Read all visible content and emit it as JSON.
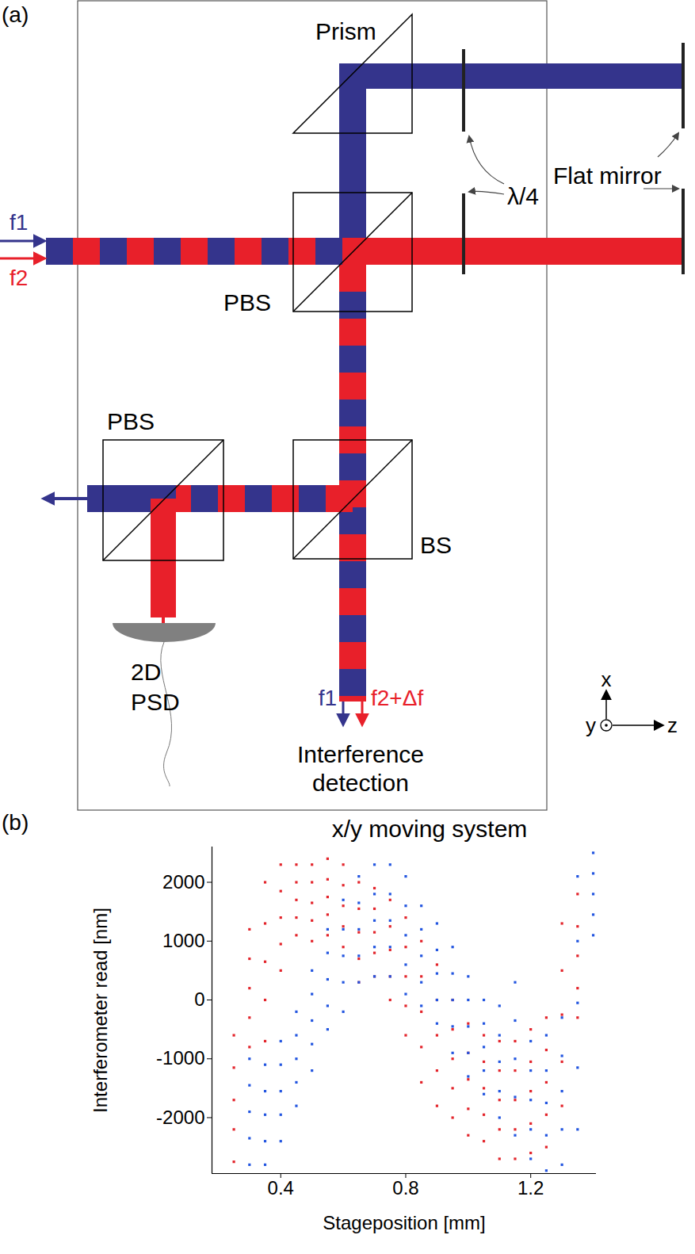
{
  "diagram": {
    "panel_label": "(a)",
    "components": {
      "prism": "Prism",
      "quarter_wave": "λ/4",
      "mirror": "Flat mirror",
      "pbs_top": "PBS",
      "pbs_bottom": "PBS",
      "bs": "BS",
      "psd": [
        "2D",
        "PSD"
      ]
    },
    "beams": {
      "input_f1": "f1",
      "input_f2": "f2",
      "output_f1": "f1",
      "output_f2": "f2+Δf"
    },
    "detection": [
      "Interference",
      "detection"
    ],
    "frame": "x/y moving system",
    "axes": {
      "x": "x",
      "y": "y",
      "z": "z"
    }
  },
  "chart_data": {
    "panel_label": "(b)",
    "type": "scatter",
    "x_label": "Stageposition [mm]",
    "y_label": "Interferometer read [nm]",
    "xlim": [
      0.18,
      1.41
    ],
    "ylim": [
      -2950,
      2600
    ],
    "xticks": [
      0.4,
      0.8,
      1.2
    ],
    "yticks": [
      -2000,
      -1000,
      0,
      1000,
      2000
    ],
    "marker": "square",
    "series": [
      {
        "color": "#e3242b",
        "x": [
          0.25,
          0.3,
          0.35,
          0.4,
          0.45,
          0.5,
          0.55,
          0.6,
          0.65,
          0.7,
          0.75,
          0.8,
          0.85,
          0.9,
          0.95,
          1.0,
          1.05,
          1.1,
          1.15,
          1.2,
          1.25,
          1.3,
          1.35
        ],
        "values": [
          [
            -2750,
            -2200,
            -1700,
            -1150,
            -600
          ],
          [
            -800,
            -300,
            200,
            700,
            1200
          ],
          [
            -700,
            0,
            650,
            1300,
            2000
          ],
          [
            500,
            950,
            1400,
            1850,
            2300
          ],
          [
            1100,
            1400,
            1700,
            2000,
            2300
          ],
          [
            1000,
            1350,
            1650,
            2000,
            2300
          ],
          [
            1100,
            1450,
            1750,
            2050,
            2400
          ],
          [
            900,
            1250,
            1600,
            1950,
            2300
          ],
          [
            300,
            700,
            1150,
            1550,
            2000
          ],
          [
            400,
            800,
            1150,
            1550,
            1900
          ],
          [
            0,
            400,
            850,
            1250,
            1700
          ],
          [
            -600,
            -100,
            400,
            900,
            1400
          ],
          [
            -1400,
            -800,
            -200,
            400,
            1000
          ],
          [
            -1800,
            -1200,
            -600,
            0,
            600
          ],
          [
            -2000,
            -1500,
            -1000,
            -500,
            0
          ],
          [
            -2300,
            -1850,
            -1350,
            -900,
            -400
          ],
          [
            -2400,
            -1950,
            -1500,
            -1050,
            -600
          ],
          [
            -2700,
            -2200,
            -1700,
            -1200,
            -700
          ],
          [
            -2700,
            -2200,
            -1700,
            -1200,
            -700
          ],
          [
            -2600,
            -2100,
            -1550,
            -1050,
            -500
          ],
          [
            -2500,
            -1950,
            -1400,
            -850,
            -300
          ],
          [
            -1800,
            -1050,
            -250,
            500,
            1300
          ],
          [
            -300,
            200,
            750,
            1250,
            1800
          ]
        ]
      },
      {
        "color": "#2255e0",
        "x": [
          0.3,
          0.35,
          0.4,
          0.45,
          0.5,
          0.55,
          0.6,
          0.65,
          0.7,
          0.75,
          0.8,
          0.85,
          0.9,
          0.95,
          1.0,
          1.05,
          1.1,
          1.15,
          1.2,
          1.25,
          1.3,
          1.35,
          1.4
        ],
        "values": [
          [
            -2800,
            -2350,
            -1900,
            -1450,
            -1000
          ],
          [
            -2800,
            -2400,
            -1950,
            -1550,
            -1100
          ],
          [
            -2400,
            -1950,
            -1550,
            -1100,
            -700
          ],
          [
            -1800,
            -1400,
            -1000,
            -600,
            -200
          ],
          [
            -1200,
            -750,
            -350,
            100,
            500
          ],
          [
            -500,
            -100,
            350,
            800,
            1200
          ],
          [
            -200,
            300,
            750,
            1200,
            1700
          ],
          [
            300,
            750,
            1200,
            1650,
            2100
          ],
          [
            400,
            900,
            1350,
            1800,
            2300
          ],
          [
            400,
            900,
            1350,
            1800,
            2300
          ],
          [
            100,
            600,
            1100,
            1600,
            2100
          ],
          [
            -100,
            300,
            750,
            1200,
            1600
          ],
          [
            -400,
            0,
            450,
            850,
            1300
          ],
          [
            -900,
            -450,
            0,
            450,
            900
          ],
          [
            -1300,
            -900,
            -450,
            0,
            400
          ],
          [
            -1600,
            -1200,
            -800,
            -400,
            0
          ],
          [
            -2000,
            -1550,
            -1050,
            -600,
            -100
          ],
          [
            -2300,
            -1650,
            -1000,
            -350,
            300
          ],
          [
            -2700,
            -2200,
            -1700,
            -1200,
            -700
          ],
          [
            -2900,
            -2300,
            -1750,
            -1200,
            -600
          ],
          [
            -2800,
            -2200,
            -1550,
            -950,
            -300
          ],
          [
            -2200,
            -1150,
            -50,
            1000,
            2100
          ],
          [
            1100,
            1450,
            1800,
            2150,
            2500
          ]
        ]
      }
    ]
  }
}
